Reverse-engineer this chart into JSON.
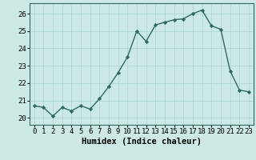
{
  "x": [
    0,
    1,
    2,
    3,
    4,
    5,
    6,
    7,
    8,
    9,
    10,
    11,
    12,
    13,
    14,
    15,
    16,
    17,
    18,
    19,
    20,
    21,
    22,
    23
  ],
  "y": [
    20.7,
    20.6,
    20.1,
    20.6,
    20.4,
    20.7,
    20.5,
    21.1,
    21.8,
    22.6,
    23.5,
    25.0,
    24.4,
    25.35,
    25.5,
    25.65,
    25.7,
    26.0,
    26.2,
    25.3,
    25.1,
    22.7,
    21.6,
    21.5
  ],
  "line_color": "#2e6b5e",
  "marker": "D",
  "marker_size": 2.2,
  "bg_color": "#cce9e5",
  "grid_color": "#b0d8d3",
  "xlabel": "Humidex (Indice chaleur)",
  "xlim": [
    -0.5,
    23.5
  ],
  "ylim": [
    19.6,
    26.6
  ],
  "yticks": [
    20,
    21,
    22,
    23,
    24,
    25,
    26
  ],
  "xtick_labels": [
    "0",
    "1",
    "2",
    "3",
    "4",
    "5",
    "6",
    "7",
    "8",
    "9",
    "10",
    "11",
    "12",
    "13",
    "14",
    "15",
    "16",
    "17",
    "18",
    "19",
    "20",
    "21",
    "22",
    "23"
  ],
  "xlabel_fontsize": 7.5,
  "tick_fontsize": 6.5,
  "linewidth": 1.0
}
